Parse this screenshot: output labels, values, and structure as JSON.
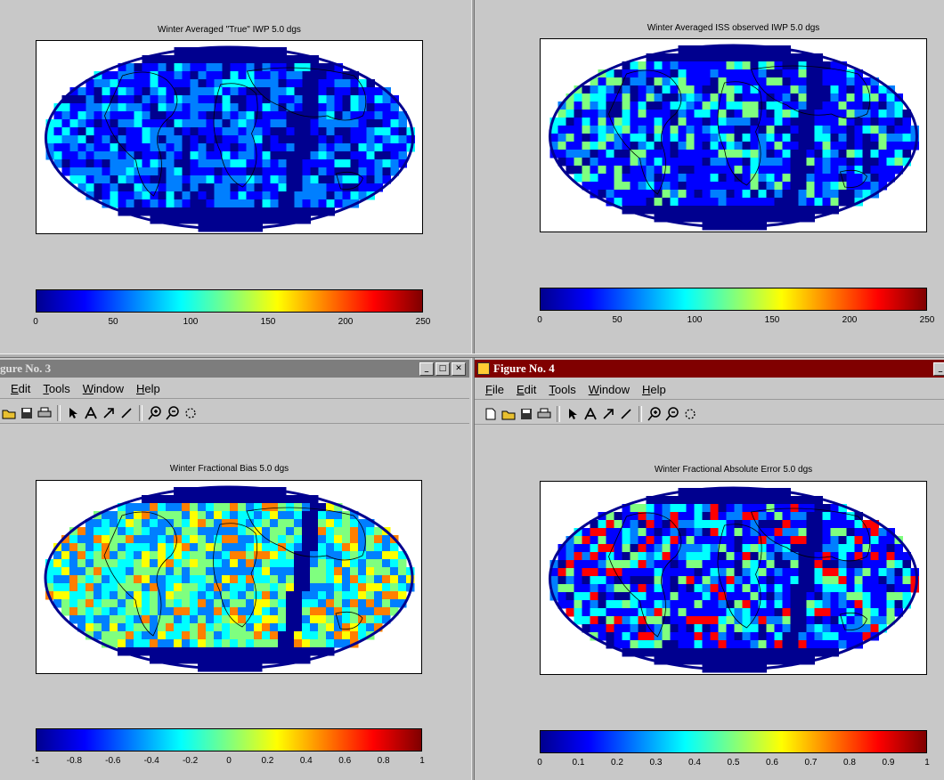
{
  "figures": [
    {
      "title": "Winter Averaged \"True\" IWP 5.0 dgs",
      "ticks": [
        "0",
        "50",
        "100",
        "150",
        "200",
        "250"
      ]
    },
    {
      "title": "Winter Averaged ISS observed IWP 5.0 dgs",
      "ticks": [
        "0",
        "50",
        "100",
        "150",
        "200",
        "250"
      ]
    },
    {
      "title": "Winter Fractional Bias 5.0 dgs",
      "ticks": [
        "-1",
        "-0.8",
        "-0.6",
        "-0.4",
        "-0.2",
        "0",
        "0.2",
        "0.4",
        "0.6",
        "0.8",
        "1"
      ]
    },
    {
      "title": "Winter Fractional Absolute Error 5.0 dgs",
      "ticks": [
        "0",
        "0.1",
        "0.2",
        "0.3",
        "0.4",
        "0.5",
        "0.6",
        "0.7",
        "0.8",
        "0.9",
        "1"
      ]
    }
  ],
  "windows": {
    "fig3": {
      "title": "gure No. 3",
      "menu": [
        "Edit",
        "Tools",
        "Window",
        "Help"
      ]
    },
    "fig4": {
      "title": "Figure No. 4",
      "menu": [
        "File",
        "Edit",
        "Tools",
        "Window",
        "Help"
      ]
    }
  },
  "window_buttons": {
    "minimize": "_",
    "maximize": "□",
    "close": "✕"
  },
  "map_colors": {
    "ocean_low": "#00008f",
    "blue": "#0000ff",
    "light_blue": "#007fff",
    "cyan": "#00ffff",
    "green": "#7fff7f",
    "yellow": "#ffff00",
    "orange": "#ff7f00",
    "red": "#ff0000"
  }
}
